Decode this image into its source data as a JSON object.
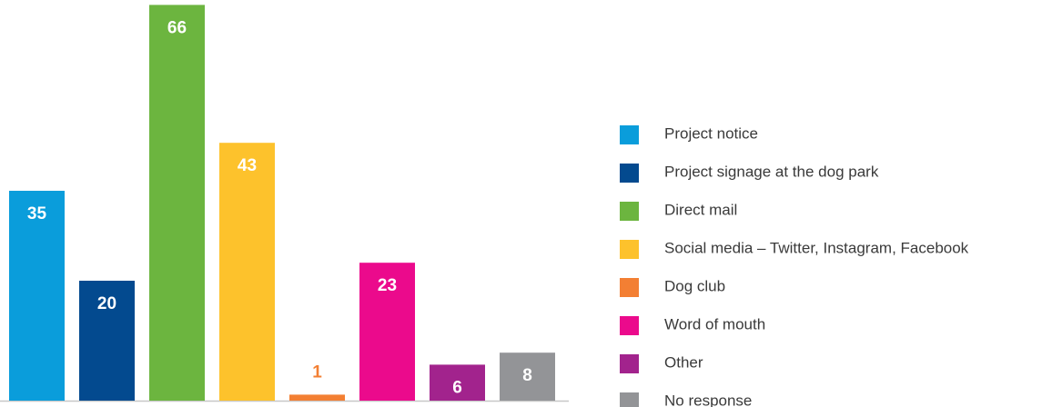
{
  "chart_data": {
    "type": "bar",
    "categories": [
      "Project notice",
      "Project signage at the dog park",
      "Direct mail",
      "Social media – Twitter, Instagram, Facebook",
      "Dog club",
      "Word of mouth",
      "Other",
      "No response"
    ],
    "values": [
      35,
      20,
      66,
      43,
      1,
      23,
      6,
      8
    ],
    "colors": [
      "#0a9ddb",
      "#034a8f",
      "#6cb53f",
      "#fdc22c",
      "#f37f33",
      "#eb0a8c",
      "#a2238d",
      "#939497"
    ]
  }
}
